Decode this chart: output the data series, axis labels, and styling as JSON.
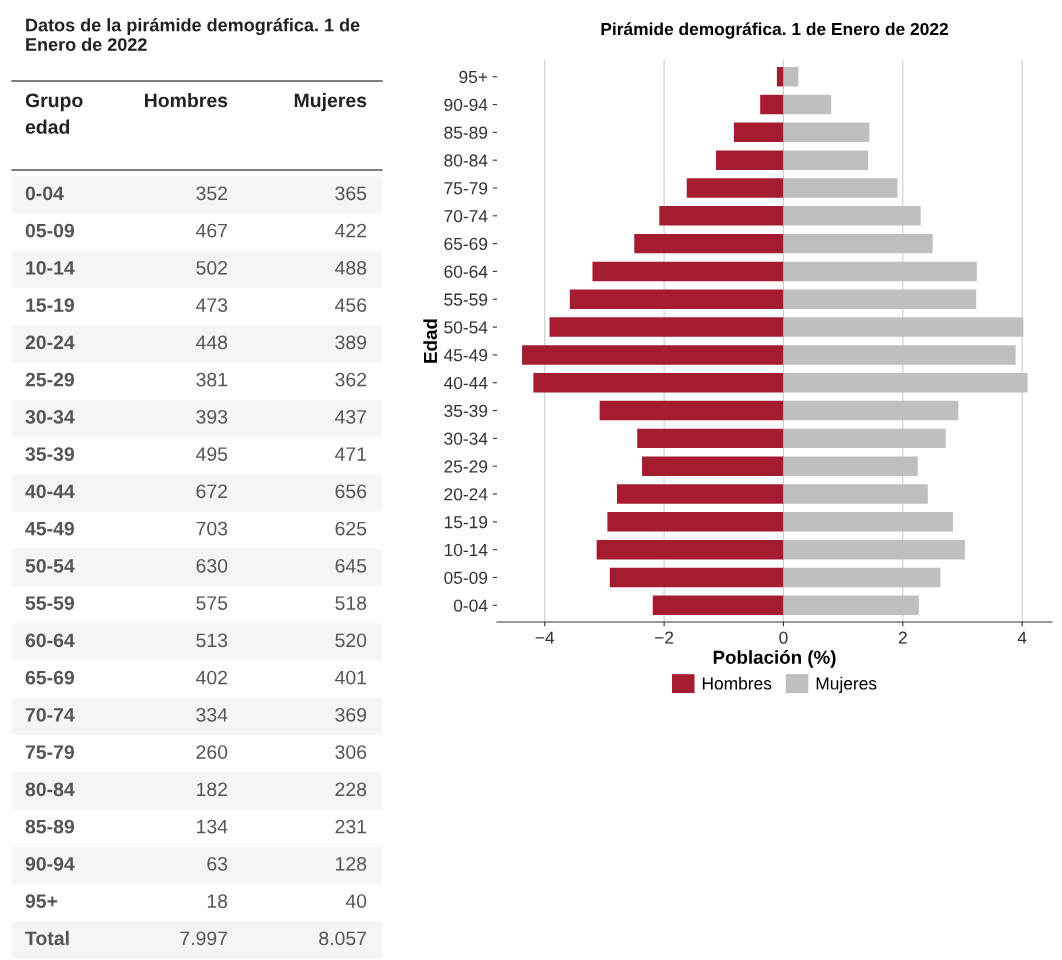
{
  "chart_data": [
    {
      "type": "other",
      "title": "Datos de la pirámide demográfica. 1 de Enero de 2022",
      "categories": [
        "Grupo edad",
        "Hombres",
        "Mujeres"
      ],
      "y_categories": [
        "0-04",
        "05-09",
        "10-14",
        "15-19",
        "20-24",
        "25-29",
        "30-34",
        "35-39",
        "40-44",
        "45-49",
        "50-54",
        "55-59",
        "60-64",
        "65-69",
        "70-74",
        "75-79",
        "80-84",
        "85-89",
        "90-94",
        "95+",
        "Total"
      ],
      "cell_labels": [
        [
          "352",
          "365"
        ],
        [
          "467",
          "422"
        ],
        [
          "502",
          "488"
        ],
        [
          "473",
          "456"
        ],
        [
          "448",
          "389"
        ],
        [
          "381",
          "362"
        ],
        [
          "393",
          "437"
        ],
        [
          "495",
          "471"
        ],
        [
          "672",
          "656"
        ],
        [
          "703",
          "625"
        ],
        [
          "630",
          "645"
        ],
        [
          "575",
          "518"
        ],
        [
          "513",
          "520"
        ],
        [
          "402",
          "401"
        ],
        [
          "334",
          "369"
        ],
        [
          "260",
          "306"
        ],
        [
          "182",
          "228"
        ],
        [
          "134",
          "231"
        ],
        [
          "63",
          "128"
        ],
        [
          "18",
          "40"
        ],
        [
          "7.997",
          "8.057"
        ]
      ]
    },
    {
      "type": "bar",
      "orientation": "horizontal",
      "stacked": true,
      "title": "Pirámide demográfica. 1 de Enero de 2022",
      "xlabel": "Población (%)",
      "ylabel": "Edad",
      "categories": [
        "95+",
        "90-94",
        "85-89",
        "80-84",
        "75-79",
        "70-74",
        "65-69",
        "60-64",
        "55-59",
        "50-54",
        "45-49",
        "40-44",
        "35-39",
        "30-34",
        "25-29",
        "20-24",
        "15-19",
        "10-14",
        "05-09",
        "0-04"
      ],
      "series": [
        {
          "name": "Hombres",
          "color": "#a51c30",
          "values": [
            -0.11,
            -0.39,
            -0.83,
            -1.13,
            -1.62,
            -2.08,
            -2.5,
            -3.2,
            -3.58,
            -3.92,
            -4.38,
            -4.19,
            -3.08,
            -2.45,
            -2.37,
            -2.79,
            -2.95,
            -3.13,
            -2.91,
            -2.19
          ]
        },
        {
          "name": "Mujeres",
          "color": "#bfbfbf",
          "values": [
            0.25,
            0.8,
            1.44,
            1.42,
            1.91,
            2.3,
            2.5,
            3.24,
            3.23,
            4.02,
            3.89,
            4.09,
            2.93,
            2.72,
            2.25,
            2.42,
            2.84,
            3.04,
            2.63,
            2.27
          ]
        }
      ],
      "xlim": [
        -4.8,
        4.5
      ],
      "xticks": [
        {
          "value": -4,
          "label": "−4"
        },
        {
          "value": -2,
          "label": "−2"
        },
        0,
        2,
        4
      ],
      "grid": "x",
      "legend": "bottom"
    }
  ]
}
